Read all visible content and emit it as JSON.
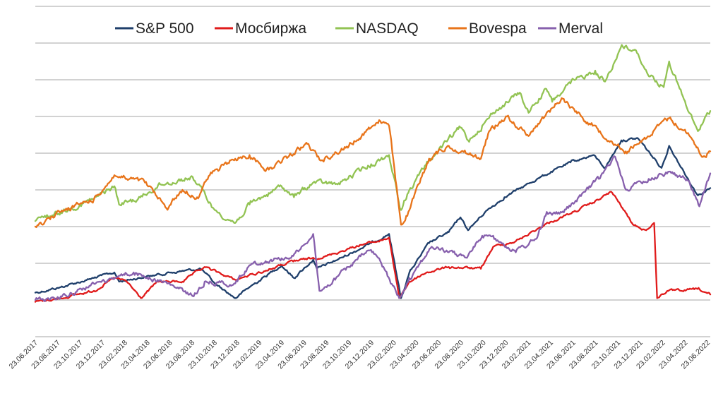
{
  "chart_data": {
    "type": "line",
    "title": "",
    "xlabel": "",
    "ylabel": "",
    "grid": "horizontal",
    "y_axis_labels_shown": false,
    "legend_position": "top",
    "x_range": [
      "2017-06-23",
      "2022-07-20"
    ],
    "x_tick_labels": [
      "23.06.2017",
      "23.08.2017",
      "23.10.2017",
      "23.12.2017",
      "23.02.2018",
      "23.04.2018",
      "23.06.2018",
      "23.08.2018",
      "23.10.2018",
      "23.12.2018",
      "23.02.2019",
      "23.04.2019",
      "23.06.2019",
      "23.08.2019",
      "23.10.2019",
      "23.12.2019",
      "23.02.2020",
      "23.04.2020",
      "23.06.2020",
      "23.08.2020",
      "23.10.2020",
      "23.12.2020",
      "23.02.2021",
      "23.04.2021",
      "23.06.2021",
      "23.08.2021",
      "23.10.2021",
      "23.12.2021",
      "23.02.2022",
      "23.04.2022",
      "23.06.2022"
    ],
    "series": [
      {
        "name": "S&P 500",
        "color": "#1f3f6b",
        "points": [
          [
            "2017-06-23",
            0.2
          ],
          [
            "2017-09-01",
            0.35
          ],
          [
            "2017-12-01",
            0.6
          ],
          [
            "2018-01-26",
            0.75
          ],
          [
            "2018-02-08",
            0.5
          ],
          [
            "2018-04-01",
            0.6
          ],
          [
            "2018-07-01",
            0.75
          ],
          [
            "2018-09-20",
            0.85
          ],
          [
            "2018-10-29",
            0.45
          ],
          [
            "2018-12-24",
            0.05
          ],
          [
            "2019-02-01",
            0.35
          ],
          [
            "2019-04-30",
            0.95
          ],
          [
            "2019-06-03",
            0.6
          ],
          [
            "2019-07-26",
            1.1
          ],
          [
            "2019-08-05",
            0.85
          ],
          [
            "2019-10-01",
            1.1
          ],
          [
            "2020-01-01",
            1.55
          ],
          [
            "2020-02-19",
            1.8
          ],
          [
            "2020-03-23",
            0.05
          ],
          [
            "2020-04-15",
            0.75
          ],
          [
            "2020-06-08",
            1.55
          ],
          [
            "2020-08-01",
            1.85
          ],
          [
            "2020-09-02",
            2.25
          ],
          [
            "2020-09-23",
            1.9
          ],
          [
            "2020-11-09",
            2.4
          ],
          [
            "2021-01-01",
            2.8
          ],
          [
            "2021-04-01",
            3.3
          ],
          [
            "2021-07-01",
            3.75
          ],
          [
            "2021-09-02",
            3.95
          ],
          [
            "2021-10-04",
            3.6
          ],
          [
            "2021-11-18",
            4.35
          ],
          [
            "2022-01-03",
            4.4
          ],
          [
            "2022-03-08",
            3.6
          ],
          [
            "2022-03-29",
            4.2
          ],
          [
            "2022-05-20",
            3.3
          ],
          [
            "2022-06-16",
            2.85
          ],
          [
            "2022-07-20",
            3.05
          ]
        ]
      },
      {
        "name": "Мосбиржа",
        "color": "#e01b1b",
        "points": [
          [
            "2017-06-23",
            -0.05
          ],
          [
            "2017-09-01",
            0.05
          ],
          [
            "2017-12-01",
            0.25
          ],
          [
            "2018-01-26",
            0.6
          ],
          [
            "2018-03-01",
            0.5
          ],
          [
            "2018-04-09",
            0.05
          ],
          [
            "2018-05-25",
            0.5
          ],
          [
            "2018-08-01",
            0.5
          ],
          [
            "2018-10-01",
            0.9
          ],
          [
            "2018-12-24",
            0.55
          ],
          [
            "2019-03-01",
            0.75
          ],
          [
            "2019-06-01",
            1.05
          ],
          [
            "2019-09-01",
            1.2
          ],
          [
            "2019-12-01",
            1.5
          ],
          [
            "2020-01-20",
            1.6
          ],
          [
            "2020-02-19",
            1.7
          ],
          [
            "2020-03-18",
            0.05
          ],
          [
            "2020-04-15",
            0.5
          ],
          [
            "2020-06-01",
            0.75
          ],
          [
            "2020-08-01",
            0.9
          ],
          [
            "2020-10-28",
            0.85
          ],
          [
            "2020-12-01",
            1.45
          ],
          [
            "2021-02-01",
            1.6
          ],
          [
            "2021-05-01",
            2.1
          ],
          [
            "2021-07-01",
            2.35
          ],
          [
            "2021-09-01",
            2.65
          ],
          [
            "2021-10-21",
            2.95
          ],
          [
            "2021-11-15",
            2.6
          ],
          [
            "2021-12-20",
            2.05
          ],
          [
            "2022-01-25",
            1.9
          ],
          [
            "2022-02-16",
            2.1
          ],
          [
            "2022-02-24",
            0.05
          ],
          [
            "2022-03-24",
            0.25
          ],
          [
            "2022-05-01",
            0.25
          ],
          [
            "2022-06-15",
            0.3
          ],
          [
            "2022-07-20",
            0.15
          ]
        ]
      },
      {
        "name": "NASDAQ",
        "color": "#92c353",
        "points": [
          [
            "2017-06-23",
            2.15
          ],
          [
            "2017-09-01",
            2.4
          ],
          [
            "2017-12-01",
            2.75
          ],
          [
            "2018-01-26",
            3.1
          ],
          [
            "2018-02-08",
            2.6
          ],
          [
            "2018-04-01",
            2.75
          ],
          [
            "2018-06-01",
            3.15
          ],
          [
            "2018-08-29",
            3.35
          ],
          [
            "2018-10-29",
            2.45
          ],
          [
            "2018-12-24",
            2.1
          ],
          [
            "2019-02-01",
            2.6
          ],
          [
            "2019-04-30",
            3.1
          ],
          [
            "2019-06-03",
            2.8
          ],
          [
            "2019-07-26",
            3.2
          ],
          [
            "2019-10-01",
            3.15
          ],
          [
            "2020-01-01",
            3.7
          ],
          [
            "2020-02-19",
            3.95
          ],
          [
            "2020-03-23",
            2.45
          ],
          [
            "2020-04-15",
            3.0
          ],
          [
            "2020-06-08",
            3.8
          ],
          [
            "2020-09-02",
            4.7
          ],
          [
            "2020-09-23",
            4.35
          ],
          [
            "2020-11-01",
            4.75
          ],
          [
            "2020-12-01",
            5.1
          ],
          [
            "2021-02-12",
            5.65
          ],
          [
            "2021-03-08",
            5.1
          ],
          [
            "2021-04-26",
            5.75
          ],
          [
            "2021-05-12",
            5.4
          ],
          [
            "2021-07-01",
            5.9
          ],
          [
            "2021-09-07",
            6.25
          ],
          [
            "2021-10-04",
            5.95
          ],
          [
            "2021-11-19",
            6.95
          ],
          [
            "2022-01-03",
            6.7
          ],
          [
            "2022-01-27",
            6.2
          ],
          [
            "2022-03-14",
            5.8
          ],
          [
            "2022-03-29",
            6.5
          ],
          [
            "2022-05-20",
            5.15
          ],
          [
            "2022-06-16",
            4.6
          ],
          [
            "2022-07-20",
            5.15
          ]
        ]
      },
      {
        "name": "Bovespa",
        "color": "#e8741a",
        "points": [
          [
            "2017-06-23",
            2.0
          ],
          [
            "2017-09-01",
            2.4
          ],
          [
            "2017-12-01",
            2.75
          ],
          [
            "2018-01-26",
            3.4
          ],
          [
            "2018-03-01",
            3.3
          ],
          [
            "2018-04-20",
            3.2
          ],
          [
            "2018-06-18",
            2.5
          ],
          [
            "2018-08-01",
            3.0
          ],
          [
            "2018-09-10",
            2.8
          ],
          [
            "2018-10-15",
            3.4
          ],
          [
            "2018-12-24",
            3.85
          ],
          [
            "2019-02-01",
            3.95
          ],
          [
            "2019-03-26",
            3.55
          ],
          [
            "2019-07-10",
            4.25
          ],
          [
            "2019-08-15",
            3.8
          ],
          [
            "2019-11-01",
            4.2
          ],
          [
            "2020-01-23",
            4.9
          ],
          [
            "2020-02-19",
            4.75
          ],
          [
            "2020-03-23",
            2.05
          ],
          [
            "2020-04-15",
            2.45
          ],
          [
            "2020-06-08",
            3.85
          ],
          [
            "2020-08-01",
            4.2
          ],
          [
            "2020-10-28",
            3.85
          ],
          [
            "2020-11-20",
            4.6
          ],
          [
            "2021-01-08",
            5.0
          ],
          [
            "2021-03-05",
            4.5
          ],
          [
            "2021-06-07",
            5.5
          ],
          [
            "2021-07-28",
            5.05
          ],
          [
            "2021-09-20",
            4.6
          ],
          [
            "2021-11-30",
            4.05
          ],
          [
            "2022-01-03",
            4.25
          ],
          [
            "2022-03-29",
            4.95
          ],
          [
            "2022-05-20",
            4.55
          ],
          [
            "2022-06-30",
            3.9
          ],
          [
            "2022-07-20",
            4.05
          ]
        ]
      },
      {
        "name": "Merval",
        "color": "#8760ad",
        "points": [
          [
            "2017-06-23",
            0.0
          ],
          [
            "2017-09-01",
            0.1
          ],
          [
            "2017-11-10",
            0.35
          ],
          [
            "2018-01-19",
            0.6
          ],
          [
            "2018-02-20",
            0.7
          ],
          [
            "2018-03-20",
            0.75
          ],
          [
            "2018-06-20",
            0.45
          ],
          [
            "2018-09-01",
            0.1
          ],
          [
            "2018-10-01",
            0.5
          ],
          [
            "2018-12-24",
            0.45
          ],
          [
            "2019-02-01",
            0.95
          ],
          [
            "2019-04-01",
            1.1
          ],
          [
            "2019-06-01",
            1.2
          ],
          [
            "2019-07-26",
            1.8
          ],
          [
            "2019-08-12",
            0.25
          ],
          [
            "2019-09-01",
            0.35
          ],
          [
            "2019-11-01",
            0.9
          ],
          [
            "2019-12-26",
            1.35
          ],
          [
            "2020-01-20",
            1.15
          ],
          [
            "2020-03-18",
            0.05
          ],
          [
            "2020-04-15",
            0.6
          ],
          [
            "2020-06-15",
            1.45
          ],
          [
            "2020-08-01",
            1.3
          ],
          [
            "2020-09-20",
            1.15
          ],
          [
            "2020-11-01",
            1.75
          ],
          [
            "2020-12-01",
            1.75
          ],
          [
            "2021-02-01",
            1.3
          ],
          [
            "2021-04-01",
            1.7
          ],
          [
            "2021-04-27",
            2.4
          ],
          [
            "2021-06-01",
            2.35
          ],
          [
            "2021-07-01",
            2.55
          ],
          [
            "2021-09-17",
            3.3
          ],
          [
            "2021-11-01",
            3.9
          ],
          [
            "2021-12-01",
            3.0
          ],
          [
            "2022-02-01",
            3.3
          ],
          [
            "2022-04-01",
            3.5
          ],
          [
            "2022-05-20",
            3.25
          ],
          [
            "2022-06-20",
            2.55
          ],
          [
            "2022-07-20",
            3.45
          ]
        ]
      }
    ]
  }
}
